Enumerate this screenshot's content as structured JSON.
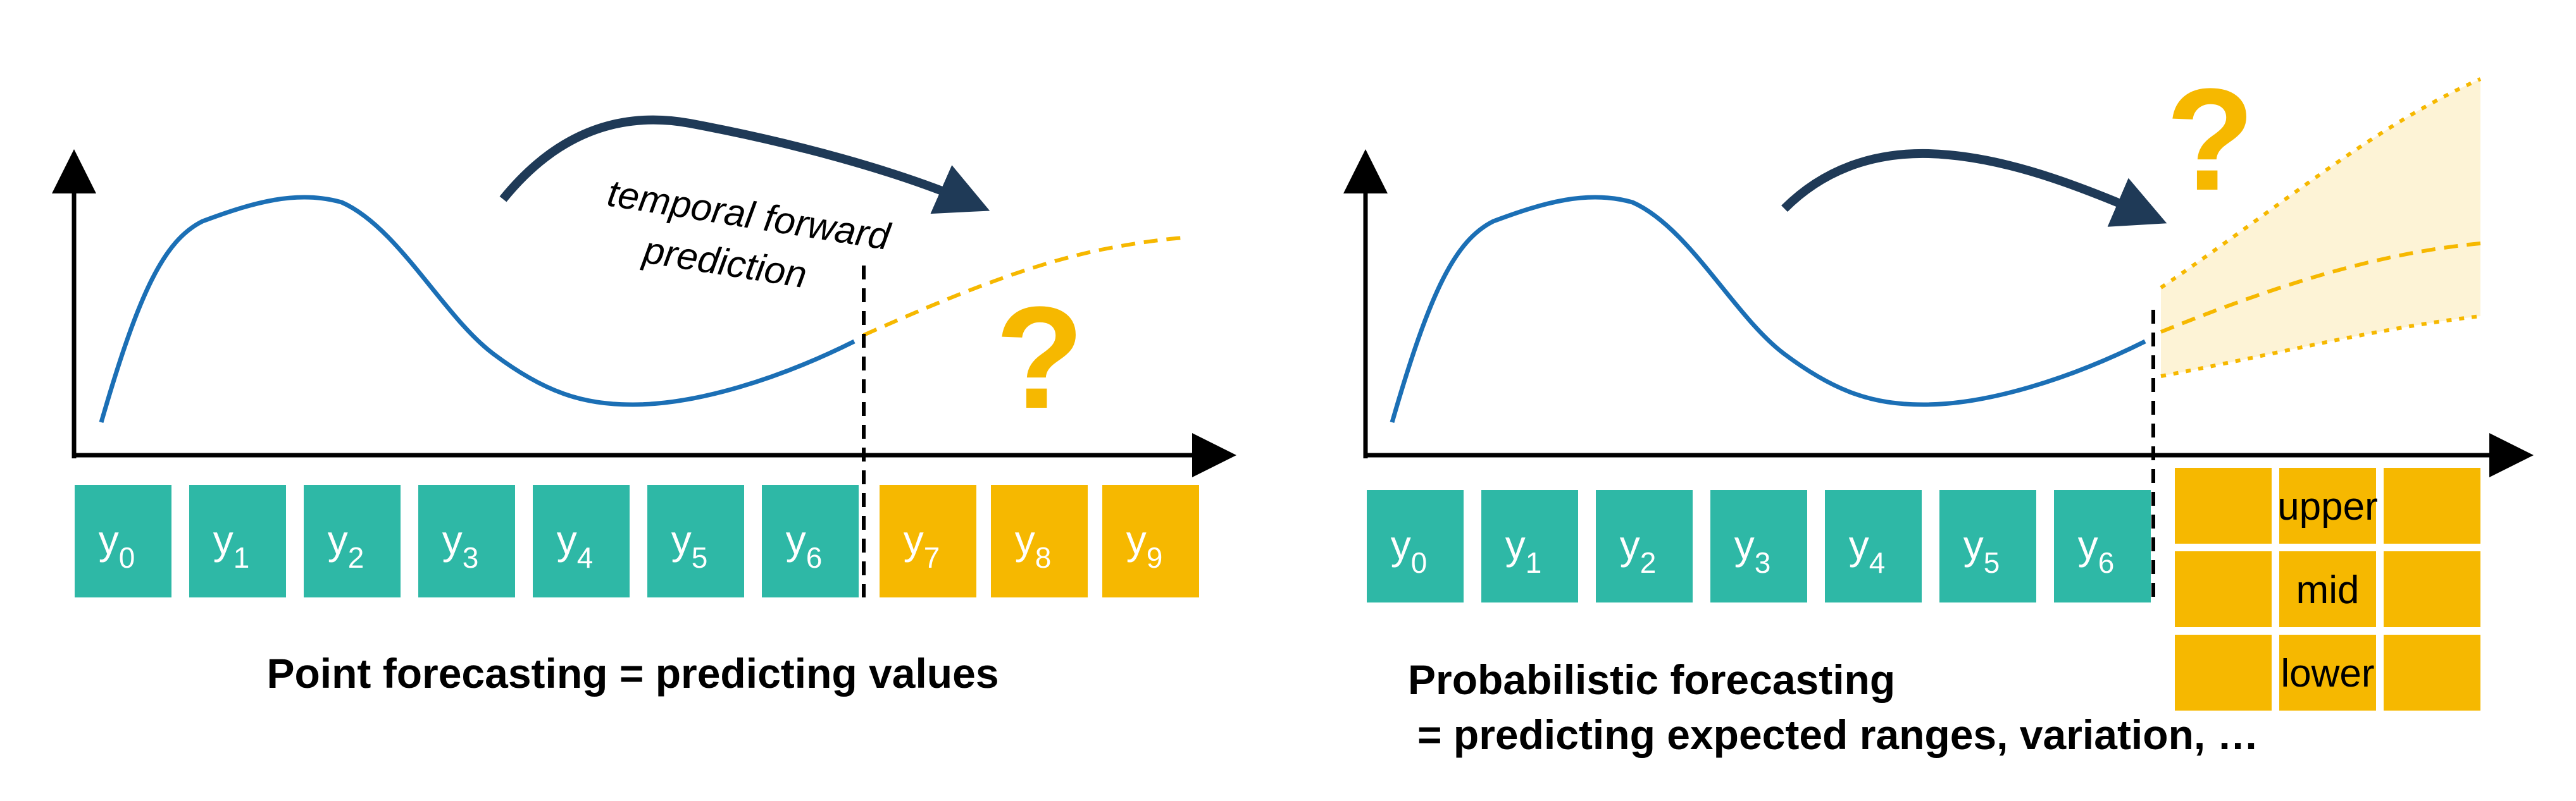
{
  "colors": {
    "teal": "#2eb8a6",
    "amber": "#f6b800",
    "curve": "#1b6fb5",
    "arrow": "#1f3a57",
    "band": "#fdf3d6"
  },
  "left": {
    "annotation": [
      "temporal forward",
      "prediction"
    ],
    "question_mark": "?",
    "observed": [
      {
        "base": "y",
        "sub": "0"
      },
      {
        "base": "y",
        "sub": "1"
      },
      {
        "base": "y",
        "sub": "2"
      },
      {
        "base": "y",
        "sub": "3"
      },
      {
        "base": "y",
        "sub": "4"
      },
      {
        "base": "y",
        "sub": "5"
      },
      {
        "base": "y",
        "sub": "6"
      }
    ],
    "forecast": [
      {
        "base": "y",
        "sub": "7"
      },
      {
        "base": "y",
        "sub": "8"
      },
      {
        "base": "y",
        "sub": "9"
      }
    ],
    "caption": "Point forecasting = predicting values"
  },
  "right": {
    "question_mark": "?",
    "observed": [
      {
        "base": "y",
        "sub": "0"
      },
      {
        "base": "y",
        "sub": "1"
      },
      {
        "base": "y",
        "sub": "2"
      },
      {
        "base": "y",
        "sub": "3"
      },
      {
        "base": "y",
        "sub": "4"
      },
      {
        "base": "y",
        "sub": "5"
      },
      {
        "base": "y",
        "sub": "6"
      }
    ],
    "bands": [
      "upper",
      "mid",
      "lower"
    ],
    "caption_line1": "Probabilistic forecasting",
    "caption_line2": "= predicting expected ranges, variation, …"
  }
}
